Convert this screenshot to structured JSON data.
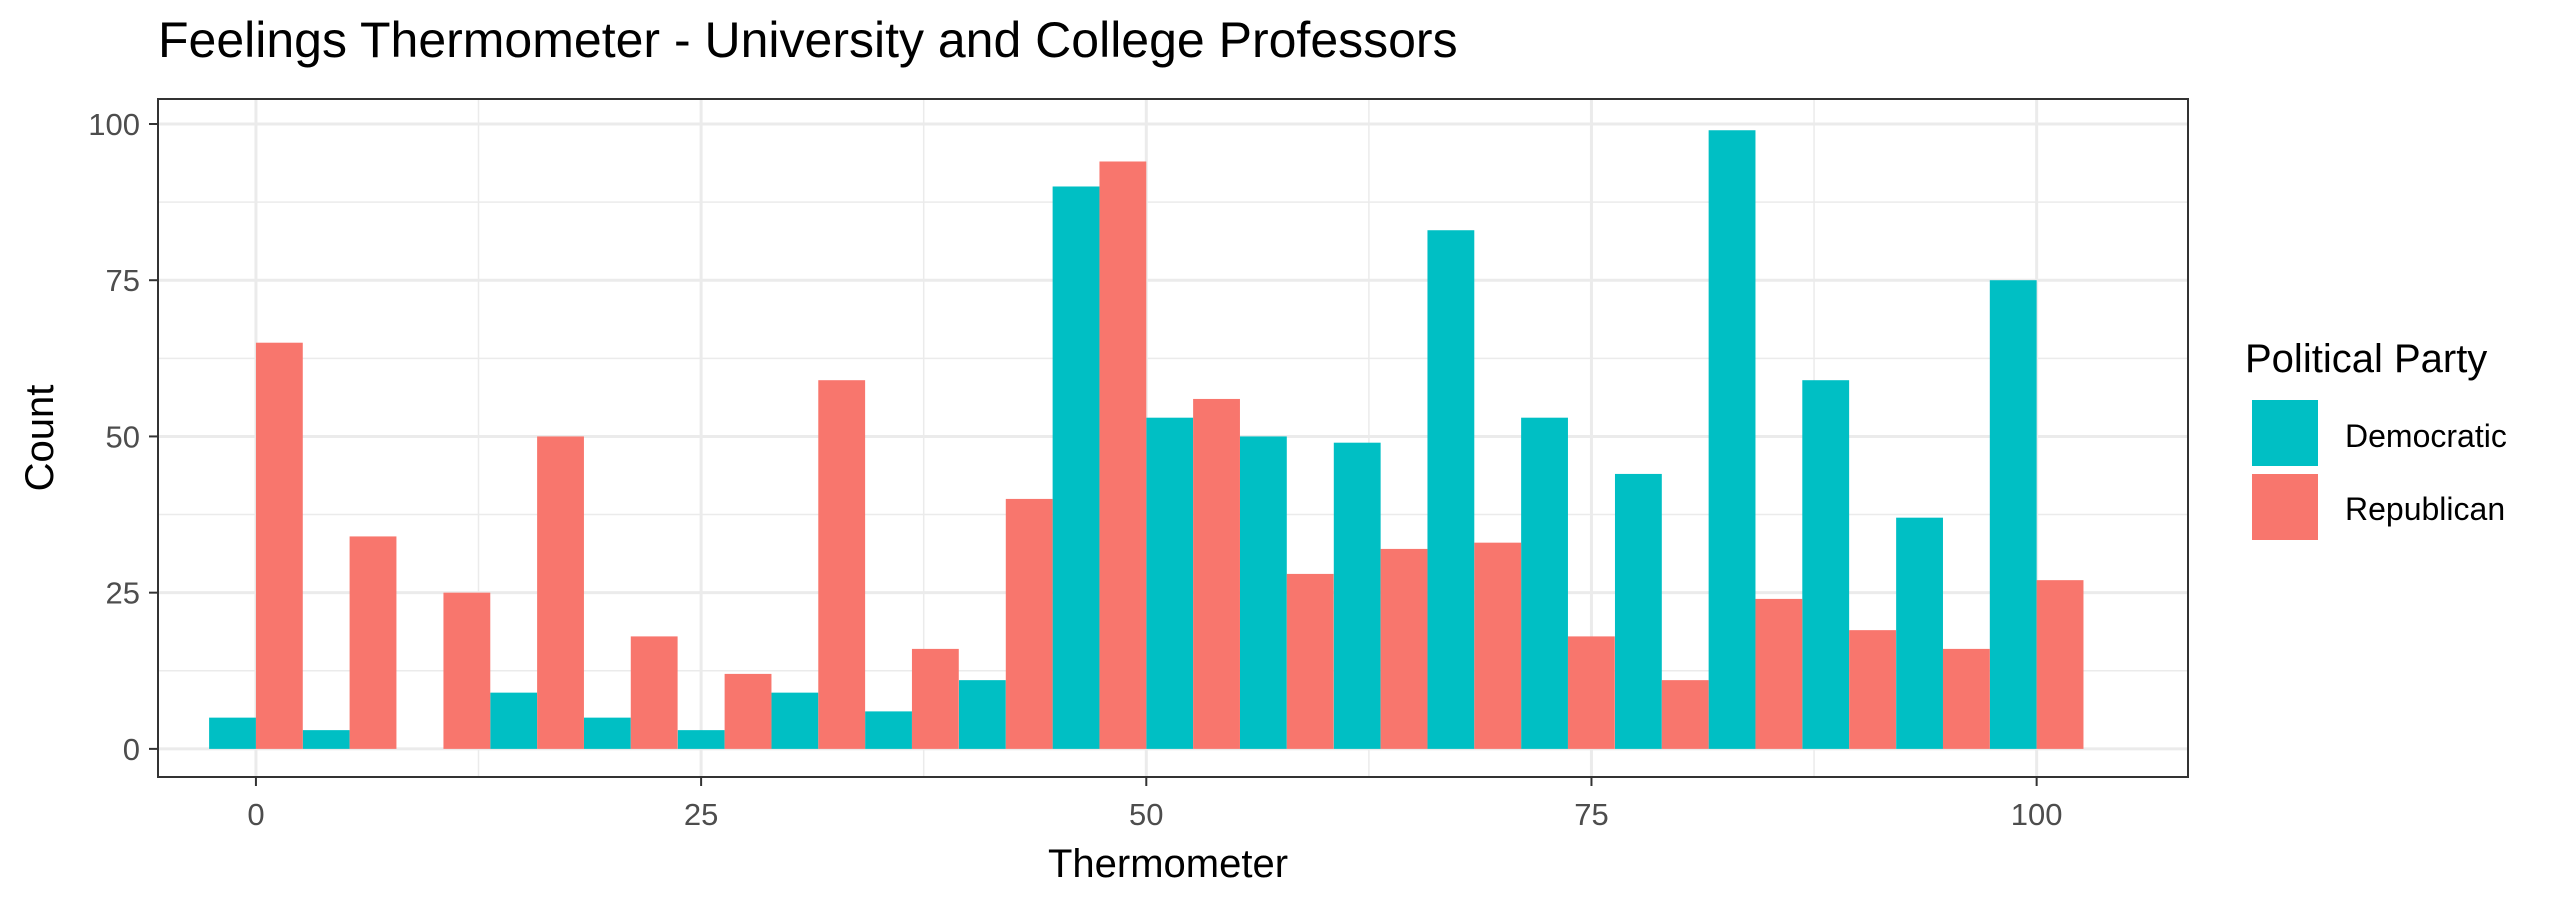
{
  "chart_data": {
    "type": "bar",
    "title": "Feelings Thermometer - University and College Professors",
    "xlabel": "Thermometer",
    "ylabel": "Count",
    "xlim": [
      -5.5,
      108.5
    ],
    "ylim": [
      -4.5,
      104
    ],
    "xticks": [
      0,
      25,
      50,
      75,
      100
    ],
    "yticks": [
      0,
      25,
      50,
      75,
      100
    ],
    "grid": true,
    "legend": {
      "title": "Political Party",
      "position": "right"
    },
    "bin_centers": [
      0,
      5.26,
      10.53,
      15.79,
      21.05,
      26.32,
      31.58,
      36.84,
      42.11,
      47.37,
      52.63,
      57.89,
      63.16,
      68.42,
      73.68,
      78.95,
      84.21,
      89.47,
      94.74,
      100
    ],
    "series": [
      {
        "name": "Democratic",
        "color": "#00BFC4",
        "values": [
          5,
          3,
          0,
          9,
          5,
          3,
          9,
          6,
          11,
          90,
          53,
          50,
          49,
          83,
          53,
          44,
          99,
          59,
          37,
          75
        ]
      },
      {
        "name": "Republican",
        "color": "#F8766D",
        "values": [
          65,
          34,
          25,
          50,
          18,
          12,
          59,
          16,
          40,
          94,
          56,
          28,
          32,
          33,
          18,
          11,
          24,
          19,
          16,
          27
        ]
      }
    ]
  }
}
